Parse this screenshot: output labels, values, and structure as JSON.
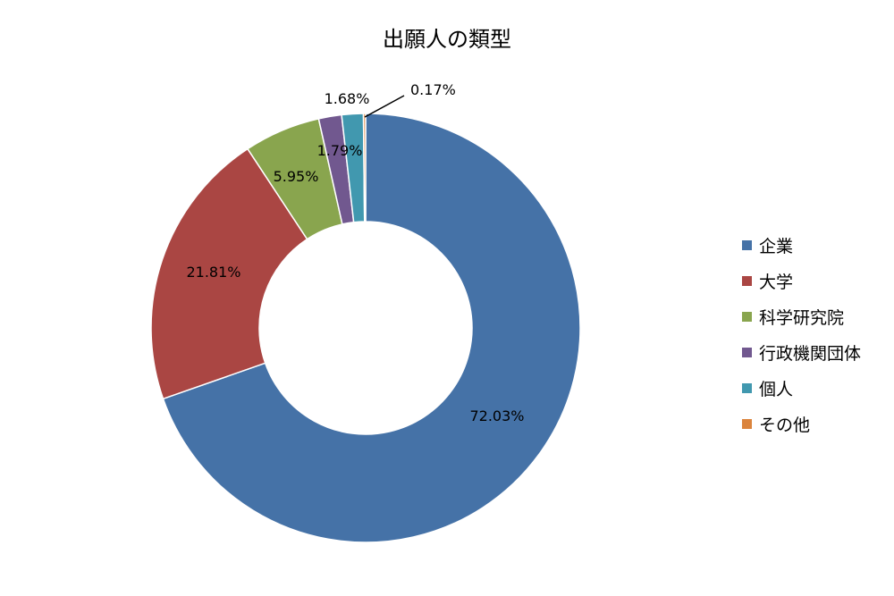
{
  "chart_data": {
    "type": "pie",
    "donut": true,
    "title": "出願人の類型",
    "categories": [
      "企業",
      "大学",
      "科学研究院",
      "行政機関団体",
      "個人",
      "その他"
    ],
    "values": [
      72.03,
      21.81,
      5.95,
      1.79,
      1.68,
      0.17
    ],
    "data_labels": [
      "72.03%",
      "21.81%",
      "5.95%",
      "1.79%",
      "1.68%",
      "0.17%"
    ],
    "colors": [
      "#4572A7",
      "#AA4643",
      "#89A54E",
      "#71588F",
      "#4198AF",
      "#DB843D"
    ],
    "legend_position": "right",
    "start_angle": "top",
    "direction": "clockwise"
  }
}
